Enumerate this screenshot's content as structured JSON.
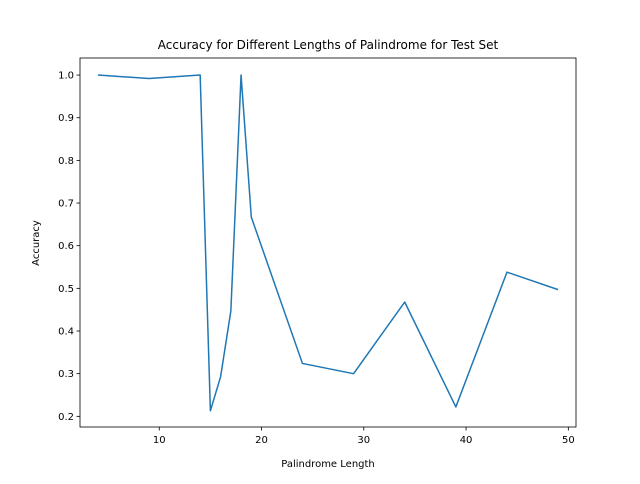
{
  "chart_data": {
    "type": "line",
    "title": "Accuracy for Different Lengths of Palindrome for Test Set",
    "xlabel": "Palindrome Length",
    "ylabel": "Accuracy",
    "xlim": [
      2.25,
      50.75
    ],
    "ylim": [
      0.175,
      1.04
    ],
    "xticks": [
      10,
      20,
      30,
      40,
      50
    ],
    "yticks": [
      0.2,
      0.3,
      0.4,
      0.5,
      0.6,
      0.7,
      0.8,
      0.9,
      1.0
    ],
    "grid": false,
    "series": [
      {
        "name": "accuracy",
        "color": "#1f77b4",
        "x": [
          4,
          9,
          14,
          15,
          16,
          17,
          18,
          19,
          24,
          29,
          34,
          39,
          44,
          49
        ],
        "y": [
          1.0,
          0.992,
          1.0,
          0.213,
          0.293,
          0.447,
          1.0,
          0.667,
          0.324,
          0.3,
          0.468,
          0.222,
          0.538,
          0.497
        ]
      }
    ]
  }
}
